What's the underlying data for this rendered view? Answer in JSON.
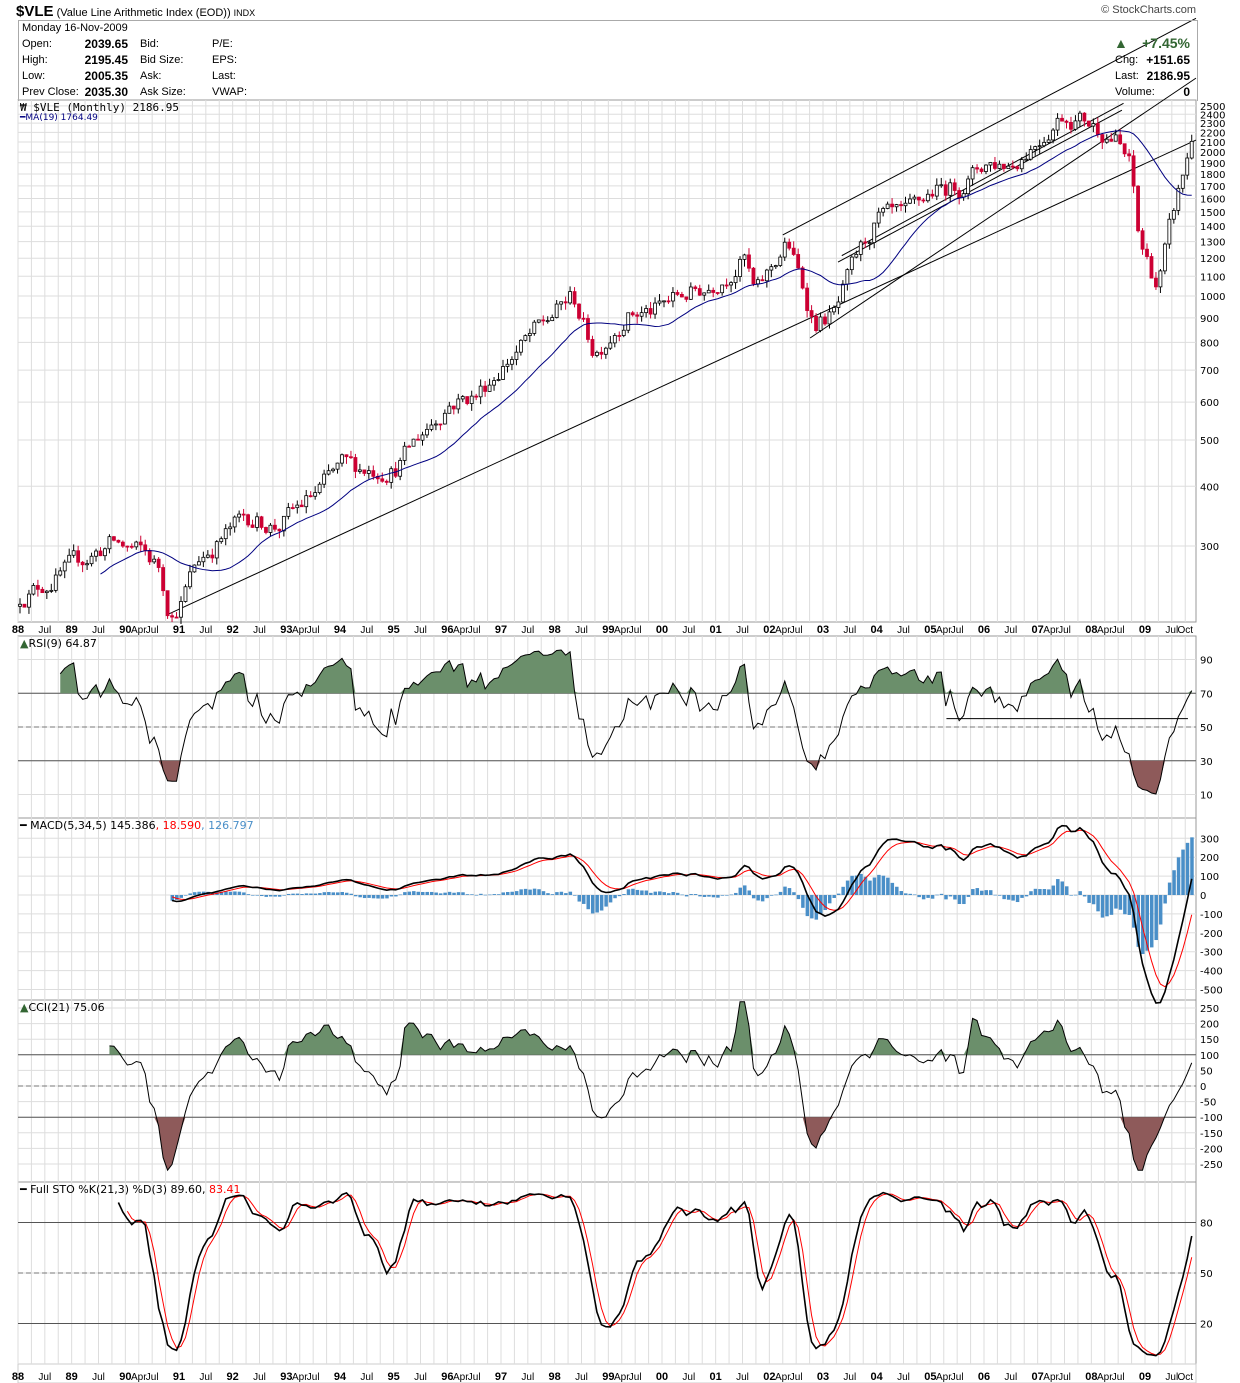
{
  "header": {
    "symbol": "$VLE",
    "name": "(Value Line Arithmetic Index (EOD))",
    "exchange": "INDX",
    "copyright": "© StockCharts.com",
    "date": "Monday  16-Nov-2009",
    "open_label": "Open:",
    "open": "2039.65",
    "high_label": "High:",
    "high": "2195.45",
    "low_label": "Low:",
    "low": "2005.35",
    "prev_close_label": "Prev Close:",
    "prev_close": "2035.30",
    "bid_label": "Bid:",
    "bid_size_label": "Bid Size:",
    "ask_label": "Ask:",
    "ask_size_label": "Ask Size:",
    "pe_label": "P/E:",
    "eps_label": "EPS:",
    "last_label_l": "Last:",
    "vwap_label": "VWAP:",
    "pct_change": "+7.45%",
    "chg_label": "Chg:",
    "chg": "+151.65",
    "last_label": "Last:",
    "last": "2186.95",
    "volume_label": "Volume:",
    "volume": "0"
  },
  "colors": {
    "up_green": "#336633",
    "down_red": "#cc0033",
    "ma_blue": "#000080",
    "fill_green": "#6b8f6b",
    "fill_brown": "#8e5a5a",
    "hist_blue": "#4a8fc8",
    "signal_red": "#ff0000"
  },
  "chart_data": {
    "type": "candlestick-with-indicators",
    "period": "Monthly",
    "start": 1988.0,
    "end": 2009.87,
    "price": {
      "legend": "$VLE (Monthly) 2186.95",
      "ma_legend": "MA(19) 1764.49",
      "scale": "log",
      "ylim": [
        200,
        2600
      ],
      "ticks": [
        2500,
        2400,
        2300,
        2200,
        2100,
        2000,
        1900,
        1800,
        1700,
        1600,
        1500,
        1400,
        1300,
        1200,
        1100,
        1000,
        900,
        800,
        700,
        600,
        500,
        400,
        300
      ],
      "anchors": [
        [
          1988.0,
          235
        ],
        [
          1988.6,
          255
        ],
        [
          1989.7,
          305
        ],
        [
          1990.3,
          290
        ],
        [
          1990.6,
          270
        ],
        [
          1990.8,
          215
        ],
        [
          1991.0,
          230
        ],
        [
          1991.3,
          280
        ],
        [
          1992.2,
          345
        ],
        [
          1992.8,
          330
        ],
        [
          1993.5,
          385
        ],
        [
          1994.0,
          440
        ],
        [
          1994.6,
          435
        ],
        [
          1995.0,
          440
        ],
        [
          1995.5,
          520
        ],
        [
          1996.0,
          600
        ],
        [
          1996.5,
          620
        ],
        [
          1997.0,
          720
        ],
        [
          1997.7,
          860
        ],
        [
          1998.3,
          1000
        ],
        [
          1998.7,
          760
        ],
        [
          1999.3,
          920
        ],
        [
          1999.8,
          930
        ],
        [
          2000.3,
          1000
        ],
        [
          2000.8,
          1040
        ],
        [
          2001.5,
          1200
        ],
        [
          2001.7,
          1000
        ],
        [
          2002.3,
          1300
        ],
        [
          2002.8,
          880
        ],
        [
          2003.2,
          920
        ],
        [
          2003.6,
          1200
        ],
        [
          2004.0,
          1450
        ],
        [
          2004.5,
          1450
        ],
        [
          2005.0,
          1650
        ],
        [
          2005.5,
          1700
        ],
        [
          2006.0,
          1900
        ],
        [
          2006.5,
          1900
        ],
        [
          2007.0,
          2150
        ],
        [
          2007.4,
          2400
        ],
        [
          2007.8,
          2350
        ],
        [
          2008.4,
          2150
        ],
        [
          2008.7,
          1850
        ],
        [
          2008.85,
          1300
        ],
        [
          2009.2,
          1050
        ],
        [
          2009.5,
          1500
        ],
        [
          2009.87,
          2186.95
        ]
      ],
      "trendlines": [
        [
          [
            1990.8,
            216
          ],
          [
            2009.95,
            2120
          ]
        ],
        [
          [
            2002.25,
            1342
          ],
          [
            2009.95,
            3810
          ]
        ],
        [
          [
            2002.76,
            817
          ],
          [
            2009.95,
            2857
          ]
        ],
        [
          [
            2003.28,
            1178
          ],
          [
            2008.57,
            2448
          ]
        ],
        [
          [
            2003.35,
            1215
          ],
          [
            2008.6,
            2530
          ]
        ]
      ]
    },
    "rsi": {
      "legend": "RSI(9) 64.87",
      "period": 9,
      "ticks": [
        90,
        70,
        50,
        30,
        10
      ],
      "support_line": [
        [
          2005.3,
          55
        ],
        [
          2009.8,
          55
        ]
      ]
    },
    "macd": {
      "legend_main": "MACD(5,34,5) 145.386",
      "legend_signal": "18.590",
      "legend_hist": "126.797",
      "fast": 5,
      "slow": 34,
      "signal": 5,
      "ticks": [
        300,
        200,
        100,
        0,
        -100,
        -200,
        -300,
        -400,
        -500
      ]
    },
    "cci": {
      "legend": "CCI(21) 75.06",
      "period": 21,
      "ticks": [
        250,
        200,
        150,
        100,
        50,
        0,
        -50,
        -100,
        -150,
        -200,
        -250
      ]
    },
    "sto": {
      "legend_main": "Full STO %K(21,3) %D(3) 89.60,",
      "legend_d": "83.41",
      "ticks": [
        80,
        50,
        20
      ]
    },
    "x_labels": [
      [
        "88",
        1988,
        1
      ],
      [
        "Jul",
        1988.5,
        0
      ],
      [
        "89",
        1989,
        1
      ],
      [
        "Jul",
        1989.5,
        0
      ],
      [
        "90",
        1990,
        1
      ],
      [
        "Apr",
        1990.25,
        0
      ],
      [
        "Jul",
        1990.5,
        0
      ],
      [
        "91",
        1991,
        1
      ],
      [
        "Jul",
        1991.5,
        0
      ],
      [
        "92",
        1992,
        1
      ],
      [
        "Jul",
        1992.5,
        0
      ],
      [
        "93",
        1993,
        1
      ],
      [
        "Apr",
        1993.25,
        0
      ],
      [
        "Jul",
        1993.5,
        0
      ],
      [
        "94",
        1994,
        1
      ],
      [
        "Jul",
        1994.5,
        0
      ],
      [
        "95",
        1995,
        1
      ],
      [
        "Jul",
        1995.5,
        0
      ],
      [
        "96",
        1996,
        1
      ],
      [
        "Apr",
        1996.25,
        0
      ],
      [
        "Jul",
        1996.5,
        0
      ],
      [
        "97",
        1997,
        1
      ],
      [
        "Jul",
        1997.5,
        0
      ],
      [
        "98",
        1998,
        1
      ],
      [
        "Jul",
        1998.5,
        0
      ],
      [
        "99",
        1999,
        1
      ],
      [
        "Apr",
        1999.25,
        0
      ],
      [
        "Jul",
        1999.5,
        0
      ],
      [
        "00",
        2000,
        1
      ],
      [
        "Jul",
        2000.5,
        0
      ],
      [
        "01",
        2001,
        1
      ],
      [
        "Jul",
        2001.5,
        0
      ],
      [
        "02",
        2002,
        1
      ],
      [
        "Apr",
        2002.25,
        0
      ],
      [
        "Jul",
        2002.5,
        0
      ],
      [
        "03",
        2003,
        1
      ],
      [
        "Jul",
        2003.5,
        0
      ],
      [
        "04",
        2004,
        1
      ],
      [
        "Jul",
        2004.5,
        0
      ],
      [
        "05",
        2005,
        1
      ],
      [
        "Apr",
        2005.25,
        0
      ],
      [
        "Jul",
        2005.5,
        0
      ],
      [
        "06",
        2006,
        1
      ],
      [
        "Jul",
        2006.5,
        0
      ],
      [
        "07",
        2007,
        1
      ],
      [
        "Apr",
        2007.25,
        0
      ],
      [
        "Jul",
        2007.5,
        0
      ],
      [
        "08",
        2008,
        1
      ],
      [
        "Apr",
        2008.25,
        0
      ],
      [
        "Jul",
        2008.5,
        0
      ],
      [
        "09",
        2009,
        1
      ],
      [
        "Jul",
        2009.5,
        0
      ],
      [
        "Oct",
        2009.75,
        0
      ]
    ]
  }
}
